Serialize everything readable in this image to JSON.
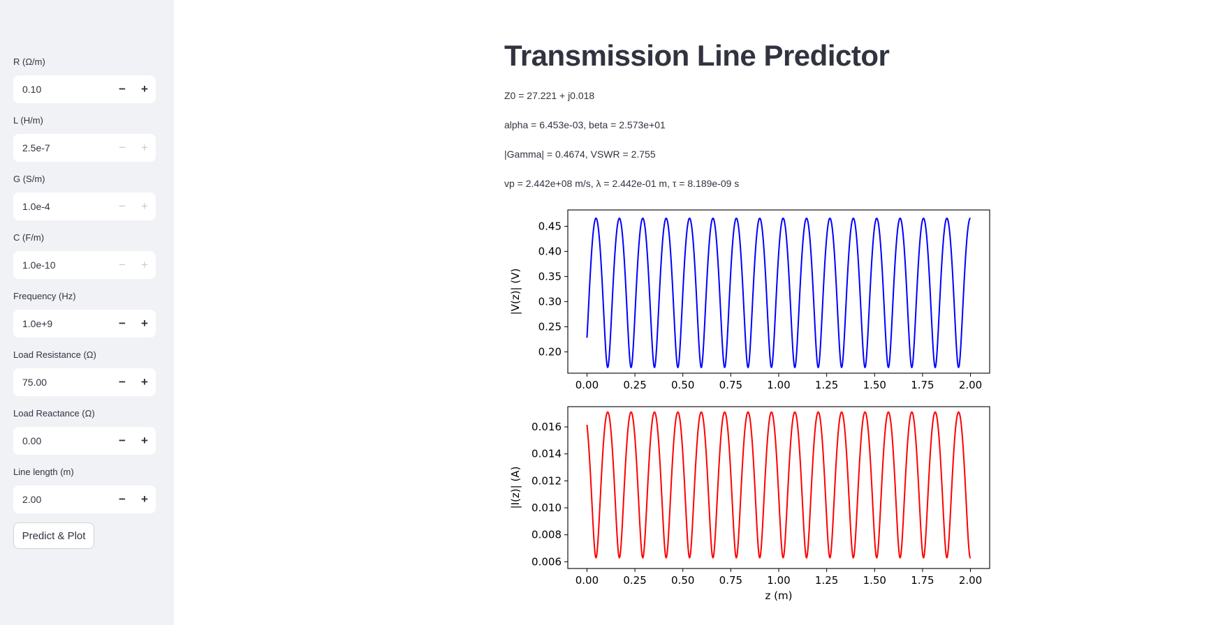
{
  "sidebar": {
    "fields": [
      {
        "label": "R (Ω/m)",
        "value": "0.10",
        "disabled": false
      },
      {
        "label": "L (H/m)",
        "value": "2.5e-7",
        "disabled": true
      },
      {
        "label": "G (S/m)",
        "value": "1.0e-4",
        "disabled": true
      },
      {
        "label": "C (F/m)",
        "value": "1.0e-10",
        "disabled": true
      },
      {
        "label": "Frequency (Hz)",
        "value": "1.0e+9",
        "disabled": false
      },
      {
        "label": "Load Resistance (Ω)",
        "value": "75.00",
        "disabled": false
      },
      {
        "label": "Load Reactance (Ω)",
        "value": "0.00",
        "disabled": false
      },
      {
        "label": "Line length (m)",
        "value": "2.00",
        "disabled": false
      }
    ],
    "stepper_minus": "−",
    "stepper_plus": "+",
    "predict_button": "Predict & Plot"
  },
  "main": {
    "title": "Transmission Line Predictor",
    "results": [
      "Z0 = 27.221 + j0.018",
      "alpha = 6.453e-03, beta = 2.573e+01",
      "|Gamma| = 0.4674, VSWR = 2.755",
      "vp = 2.442e+08 m/s, λ = 2.442e-01 m, τ = 8.189e-09 s"
    ]
  },
  "colors": {
    "sidebar_bg": "#f0f2f6",
    "voltage_line": "#0000ff",
    "current_line": "#ff0000",
    "text": "#31333f"
  },
  "chart_data": [
    {
      "type": "line",
      "ylabel": "|V(z)| (V)",
      "xlabel": "",
      "xlim": [
        -0.1,
        2.1
      ],
      "ylim": [
        0.1575,
        0.4825
      ],
      "x_ticks": [
        "0.00",
        "0.25",
        "0.50",
        "0.75",
        "1.00",
        "1.25",
        "1.50",
        "1.75",
        "2.00"
      ],
      "y_ticks": [
        "0.20",
        "0.25",
        "0.30",
        "0.35",
        "0.40",
        "0.45"
      ],
      "series": [
        {
          "color": "#0000ff",
          "function": "standing-wave",
          "x_range": [
            0,
            2
          ],
          "max": 0.466,
          "min": 0.169,
          "y_start": 0.235,
          "peaks_z": [
            0.047,
            0.169,
            0.291,
            0.413,
            0.535,
            0.657,
            0.779,
            0.901,
            1.023,
            1.145,
            1.267,
            1.389,
            1.511,
            1.633,
            1.755,
            1.877,
            1.999
          ]
        }
      ]
    },
    {
      "type": "line",
      "ylabel": "|I(z)| (A)",
      "xlabel": "z (m)",
      "xlim": [
        -0.1,
        2.1
      ],
      "ylim": [
        0.0055,
        0.0175
      ],
      "x_ticks": [
        "0.00",
        "0.25",
        "0.50",
        "0.75",
        "1.00",
        "1.25",
        "1.50",
        "1.75",
        "2.00"
      ],
      "y_ticks": [
        "0.006",
        "0.008",
        "0.010",
        "0.012",
        "0.014",
        "0.016"
      ],
      "series": [
        {
          "color": "#ff0000",
          "function": "standing-wave",
          "x_range": [
            0,
            2
          ],
          "max": 0.0171,
          "min": 0.0063,
          "y_start": 0.0161,
          "peaks_z": [
            0.108,
            0.23,
            0.352,
            0.474,
            0.596,
            0.718,
            0.84,
            0.962,
            1.084,
            1.206,
            1.328,
            1.45,
            1.572,
            1.694,
            1.816,
            1.938
          ]
        }
      ]
    }
  ]
}
